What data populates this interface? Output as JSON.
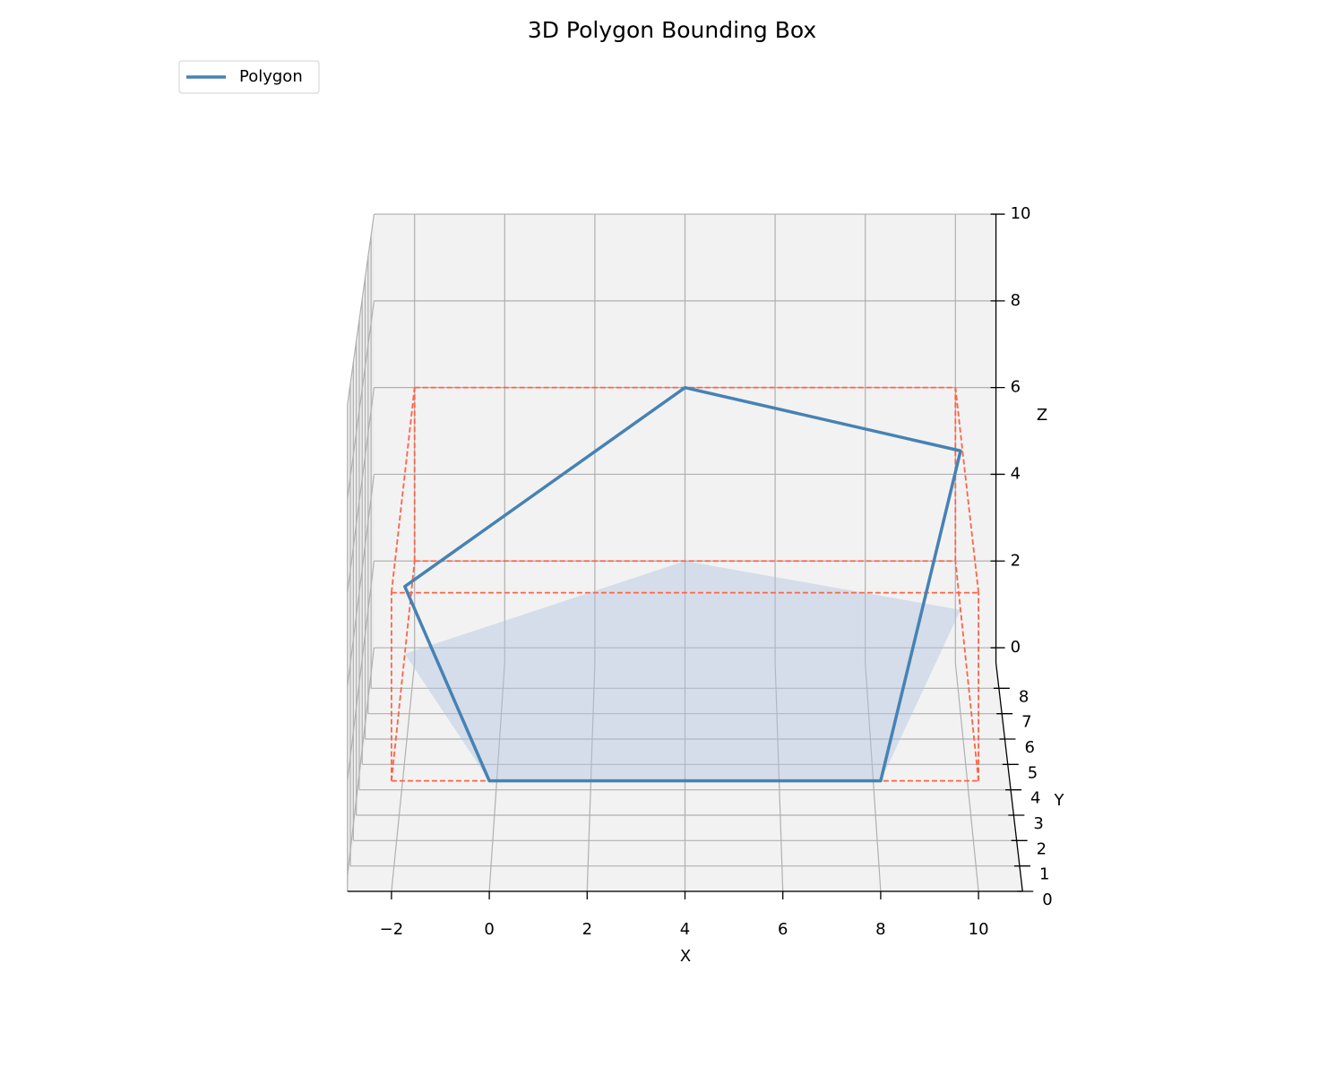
{
  "chart_data": {
    "type": "polygon3d",
    "title": "3D Polygon Bounding Box",
    "xlabel": "X",
    "ylabel": "Y",
    "zlabel": "Z",
    "series": [
      {
        "name": "Polygon",
        "color": "#4682b4",
        "x": [
          0,
          8,
          10,
          4,
          -2
        ],
        "y": [
          0,
          0,
          7,
          9,
          5.2
        ],
        "z": [
          2,
          2,
          5.6,
          6,
          3.5
        ]
      }
    ],
    "bounding_box": {
      "color": "#ff6347",
      "x": [
        -2,
        10
      ],
      "y": [
        0,
        9
      ],
      "z": [
        2,
        6
      ]
    },
    "fill_color": "#b0c4de",
    "xlim": [
      -2.9,
      10.9
    ],
    "ylim": [
      0,
      9
    ],
    "zlim": [
      -0.35,
      10
    ],
    "xticks": [
      {
        "value": -2,
        "label": "−2"
      },
      0,
      2,
      4,
      6,
      8,
      10
    ],
    "yticks": [
      0,
      1,
      2,
      3,
      4,
      5,
      6,
      7,
      8
    ],
    "zticks": [
      0,
      2,
      4,
      6,
      8,
      10
    ],
    "grid": true,
    "legend": "upper left"
  }
}
